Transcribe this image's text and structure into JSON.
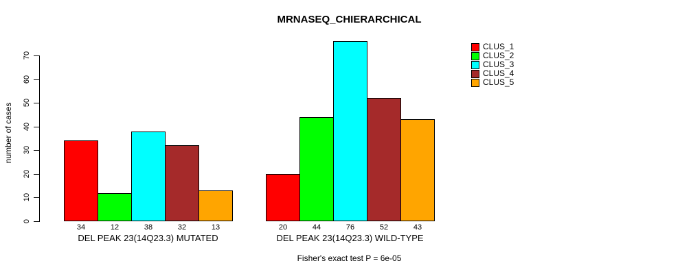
{
  "chart_data": {
    "type": "bar",
    "title": "MRNASEQ_CHIERARCHICAL",
    "ylabel": "number of cases",
    "xlabel": "",
    "ylim": [
      0,
      70
    ],
    "yticks": [
      0,
      10,
      20,
      30,
      40,
      50,
      60,
      70
    ],
    "grid": false,
    "legend_position": "top-right",
    "bar_value_labels": true,
    "categories": [
      "DEL PEAK 23(14Q23.3) MUTATED",
      "DEL PEAK 23(14Q23.3) WILD-TYPE"
    ],
    "series": [
      {
        "name": "CLUS_1",
        "color": "#FF0000",
        "values": [
          34,
          20
        ]
      },
      {
        "name": "CLUS_2",
        "color": "#00FF00",
        "values": [
          12,
          44
        ]
      },
      {
        "name": "CLUS_3",
        "color": "#00FFFF",
        "values": [
          38,
          76
        ]
      },
      {
        "name": "CLUS_4",
        "color": "#A52A2A",
        "values": [
          32,
          52
        ]
      },
      {
        "name": "CLUS_5",
        "color": "#FFA500",
        "values": [
          13,
          43
        ]
      }
    ],
    "annotation": "Fisher's exact test P = 6e-05"
  }
}
